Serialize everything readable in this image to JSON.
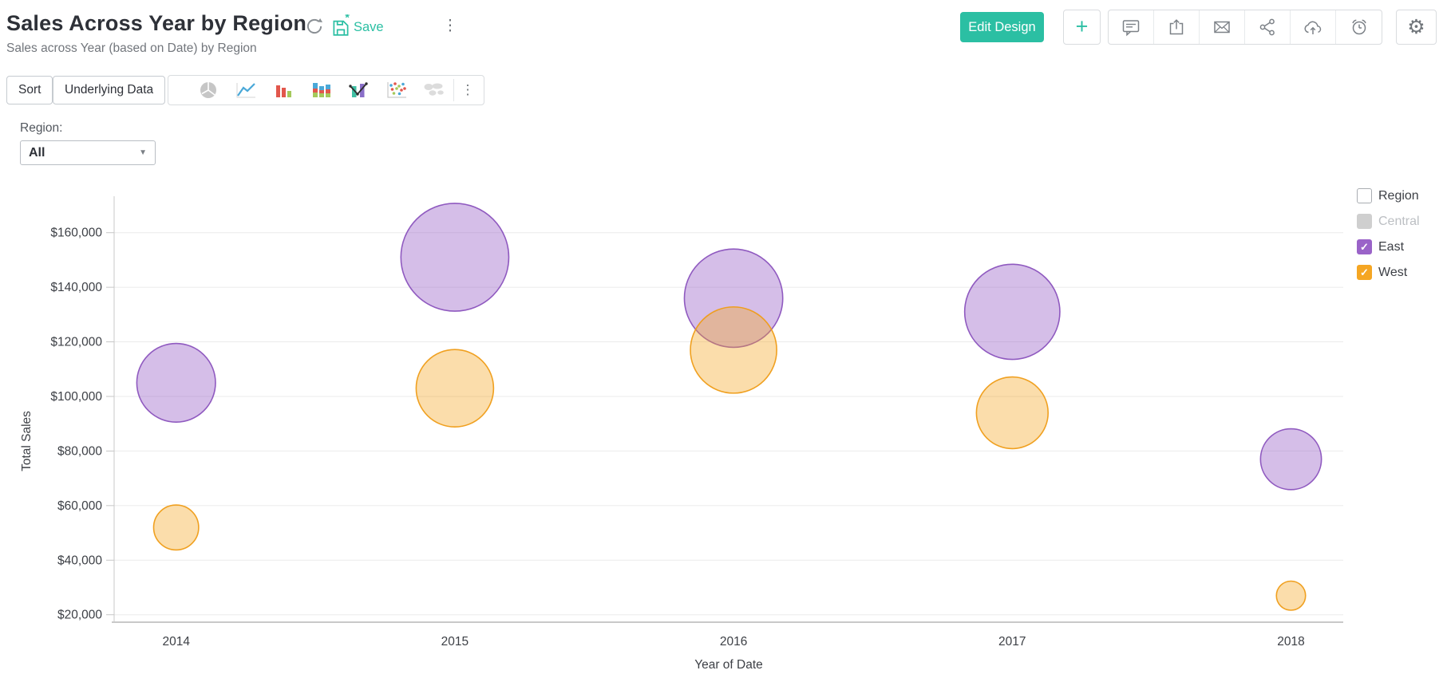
{
  "header": {
    "title": "Sales Across Year by Region",
    "subtitle": "Sales across Year (based on Date) by Region",
    "save_label": "Save",
    "edit_design_label": "Edit Design",
    "accent_color": "#2bbfa3"
  },
  "icons": {
    "plus": "+",
    "gear": "⚙",
    "kebab": "⋮",
    "caret_down": "▼",
    "check": "✓"
  },
  "toolbar": {
    "sort_label": "Sort",
    "underlying_data_label": "Underlying Data",
    "chart_types": [
      "pie",
      "line",
      "bar",
      "stacked-bar",
      "combo",
      "scatter",
      "map"
    ]
  },
  "filter": {
    "label": "Region:",
    "value": "All"
  },
  "legend": {
    "title": "Region",
    "title_checked": false,
    "items": [
      {
        "label": "Central",
        "checked": false,
        "disabled": true,
        "color": "#cfcfcf"
      },
      {
        "label": "East",
        "checked": true,
        "disabled": false,
        "color": "#9a63c8"
      },
      {
        "label": "West",
        "checked": true,
        "disabled": false,
        "color": "#f5a623"
      }
    ]
  },
  "chart_data": {
    "type": "scatter",
    "subtype": "bubble",
    "title": "Sales Across Year by Region",
    "x": [
      2014,
      2015,
      2016,
      2017,
      2018
    ],
    "series": [
      {
        "name": "East",
        "color": "#9a63c8",
        "stroke": "#8a52bd",
        "fill_opacity": 0.42,
        "values": [
          105000,
          151000,
          136000,
          131000,
          77000
        ]
      },
      {
        "name": "West",
        "color": "#f5a623",
        "stroke": "#ef9c16",
        "fill_opacity": 0.38,
        "values": [
          52000,
          103000,
          117000,
          94000,
          27000
        ]
      }
    ],
    "xlabel": "Year of Date",
    "ylabel": "Total Sales",
    "y_ticks": [
      20000,
      40000,
      60000,
      80000,
      100000,
      120000,
      140000,
      160000
    ],
    "y_tick_labels": [
      "$20,000",
      "$40,000",
      "$60,000",
      "$80,000",
      "$100,000",
      "$120,000",
      "$140,000",
      "$160,000"
    ],
    "ylim": [
      17000,
      173500
    ],
    "grid": true,
    "legend_position": "right",
    "bubble_size_encoding": "Total Sales",
    "currency": "$"
  }
}
